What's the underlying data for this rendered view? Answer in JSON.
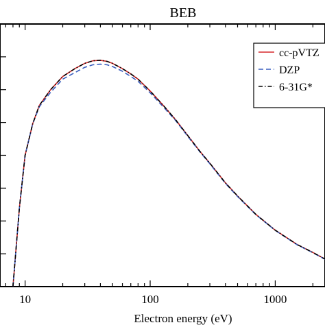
{
  "chart_data": {
    "type": "line",
    "title": "BEB",
    "xlabel": "Electron energy (eV)",
    "ylabel": "",
    "x_scale": "log",
    "xlim": [
      6.3,
      2500
    ],
    "ylim": [
      0,
      1.0
    ],
    "x_ticks": [
      {
        "value": 10,
        "label": "10"
      },
      {
        "value": 100,
        "label": "100"
      },
      {
        "value": 1000,
        "label": "1000"
      }
    ],
    "y_ticks": [
      0.125,
      0.25,
      0.375,
      0.5,
      0.625,
      0.75,
      0.875
    ],
    "grid": false,
    "legend_position": "top-right",
    "series": [
      {
        "name": "cc-pVTZ",
        "color": "#d62728",
        "style": "solid",
        "x": [
          8,
          9,
          10,
          11.5,
          13,
          16,
          20,
          25,
          30,
          35,
          40,
          45,
          50,
          60,
          70,
          80,
          100,
          130,
          160,
          200,
          250,
          300,
          400,
          500,
          700,
          1000,
          1500,
          2000,
          2500
        ],
        "y": [
          0.0,
          0.3,
          0.5,
          0.62,
          0.69,
          0.75,
          0.8,
          0.83,
          0.85,
          0.86,
          0.862,
          0.858,
          0.85,
          0.83,
          0.81,
          0.79,
          0.745,
          0.685,
          0.635,
          0.575,
          0.515,
          0.47,
          0.395,
          0.345,
          0.275,
          0.215,
          0.16,
          0.13,
          0.105
        ]
      },
      {
        "name": "DZP",
        "color": "#3a5fbf",
        "style": "dashed",
        "x": [
          8,
          9,
          10,
          11.5,
          13,
          16,
          20,
          25,
          30,
          35,
          40,
          45,
          50,
          60,
          70,
          80,
          100,
          130,
          160,
          200,
          250,
          300,
          400,
          500,
          700,
          1000,
          1500,
          2000,
          2500
        ],
        "y": [
          0.0,
          0.3,
          0.5,
          0.62,
          0.685,
          0.74,
          0.79,
          0.815,
          0.835,
          0.845,
          0.847,
          0.845,
          0.838,
          0.82,
          0.8,
          0.782,
          0.738,
          0.68,
          0.632,
          0.572,
          0.513,
          0.468,
          0.393,
          0.343,
          0.274,
          0.214,
          0.159,
          0.129,
          0.104
        ]
      },
      {
        "name": "6-31G*",
        "color": "#000000",
        "style": "dash-dot",
        "x": [
          8,
          9,
          10,
          11.5,
          13,
          16,
          20,
          25,
          30,
          35,
          40,
          45,
          50,
          60,
          70,
          80,
          100,
          130,
          160,
          200,
          250,
          300,
          400,
          500,
          700,
          1000,
          1500,
          2000,
          2500
        ],
        "y": [
          0.0,
          0.3,
          0.5,
          0.62,
          0.69,
          0.75,
          0.8,
          0.83,
          0.85,
          0.86,
          0.862,
          0.858,
          0.85,
          0.83,
          0.81,
          0.79,
          0.745,
          0.685,
          0.635,
          0.575,
          0.515,
          0.47,
          0.395,
          0.345,
          0.275,
          0.215,
          0.16,
          0.13,
          0.105
        ]
      }
    ]
  }
}
